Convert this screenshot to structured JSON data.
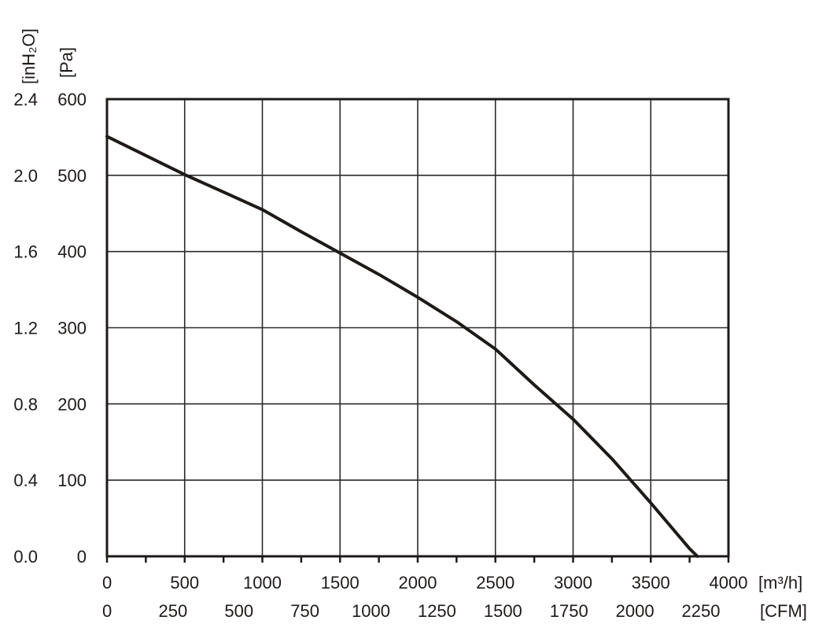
{
  "chart_data": {
    "type": "line",
    "title": "",
    "x_axis_primary": {
      "unit_label": "[m³/h]",
      "ticks": [
        "0",
        "500",
        "1000",
        "1500",
        "2000",
        "2500",
        "3000",
        "3500",
        "4000"
      ],
      "range": [
        0,
        4000
      ]
    },
    "x_axis_secondary": {
      "unit_label": "[CFM]",
      "ticks": [
        "0",
        "250",
        "500",
        "750",
        "1000",
        "1250",
        "1500",
        "1750",
        "2000",
        "2250"
      ]
    },
    "y_axis_primary": {
      "unit_label": "[Pa]",
      "ticks": [
        "0",
        "100",
        "200",
        "300",
        "400",
        "500",
        "600"
      ],
      "range": [
        0,
        600
      ]
    },
    "y_axis_secondary": {
      "unit_label": "[inH₂O]",
      "ticks": [
        "0.0",
        "0.4",
        "0.8",
        "1.2",
        "1.6",
        "2.0",
        "2.4"
      ]
    },
    "grid": true,
    "series": [
      {
        "x": [
          0,
          250,
          500,
          750,
          1000,
          1250,
          1500,
          1750,
          2000,
          2250,
          2500,
          2750,
          3000,
          3250,
          3500,
          3750,
          3800
        ],
        "y": [
          551,
          526,
          501,
          478,
          455,
          426,
          398,
          370,
          340,
          308,
          272,
          225,
          180,
          128,
          70,
          10,
          0
        ]
      }
    ]
  }
}
